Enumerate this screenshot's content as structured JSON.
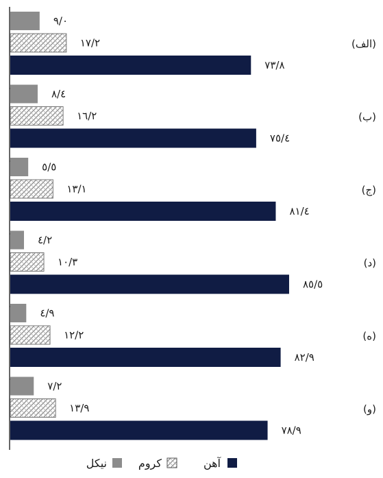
{
  "chart_data": {
    "type": "bar",
    "orientation": "horizontal",
    "grid": false,
    "legend_placement": "bottom",
    "categories": [
      "(الف)",
      "(ب)",
      "(ج)",
      "(د)",
      "(ه)",
      "(و)"
    ],
    "series": [
      {
        "name": "نیکل",
        "values": [
          9.0,
          8.4,
          5.5,
          4.2,
          4.9,
          7.2
        ],
        "labels": [
          "۹/۰",
          "۸/٤",
          "٥/٥",
          "٤/۲",
          "٤/۹",
          "۷/۲"
        ]
      },
      {
        "name": "کروم",
        "values": [
          17.2,
          16.2,
          13.1,
          10.3,
          12.2,
          13.9
        ],
        "labels": [
          "۱۷/۲",
          "۱٦/۲",
          "۱۳/۱",
          "۱۰/۳",
          "۱۲/۲",
          "۱۳/۹"
        ]
      },
      {
        "name": "آهن",
        "values": [
          73.8,
          75.4,
          81.4,
          85.5,
          82.9,
          78.9
        ],
        "labels": [
          "۷۳/۸",
          "۷٥/٤",
          "۸۱/٤",
          "۸٥/٥",
          "۸۲/۹",
          "۷۸/۹"
        ]
      }
    ],
    "colors": {
      "nickel": "#8c8c8c",
      "chromium_hatch": "#9a9a9a",
      "iron": "#101c44"
    },
    "xlim": [
      0,
      100
    ]
  }
}
